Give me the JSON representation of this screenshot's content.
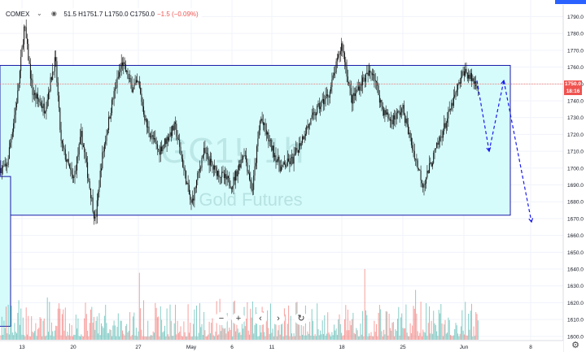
{
  "legend": {
    "symbol": "COMEX",
    "ohlc": "51.5 H1751.7 L1750.0 C1750.0",
    "change": "−1.5 (−0.09%)",
    "icons": [
      "chevron-down-icon",
      "eye-icon"
    ]
  },
  "watermark": {
    "symbol": "GC1!, 1h",
    "name": "Gold Futures"
  },
  "price_badge": {
    "price": "1750.0",
    "countdown": "18:16",
    "color": "#ef5350"
  },
  "navigation": [
    {
      "name": "zoom-out-icon",
      "glyph": "−"
    },
    {
      "name": "zoom-in-icon",
      "glyph": "+"
    },
    {
      "name": "scroll-left-icon",
      "glyph": "‹"
    },
    {
      "name": "scroll-right-icon",
      "glyph": "›"
    },
    {
      "name": "reset-icon",
      "glyph": "↻"
    }
  ],
  "colors": {
    "up": "#26a69a",
    "down": "#ef5350",
    "zone_fill": "#d6fbfb",
    "zone_border": "#1a1aa8",
    "arrow": "#1a1aee",
    "last_price_line": "#ef5350"
  },
  "chart_data": {
    "type": "candlestick",
    "timeframe": "1h",
    "x_ticks": [
      "13",
      "20",
      "27",
      "May",
      "6",
      "11",
      "18",
      "25",
      "Jun",
      "8"
    ],
    "y_ticks": [
      1600,
      1610,
      1620,
      1630,
      1640,
      1650,
      1660,
      1670,
      1680,
      1690,
      1700,
      1710,
      1720,
      1730,
      1740,
      1750,
      1760,
      1770,
      1780,
      1790
    ],
    "ylim": [
      1598,
      1796
    ],
    "grid": true,
    "last_price": 1750.0,
    "price_path": [
      [
        "13",
        1700
      ],
      [
        "14",
        1745
      ],
      [
        "15",
        1785
      ],
      [
        "16",
        1745
      ],
      [
        "17",
        1735
      ],
      [
        "18",
        1765
      ],
      [
        "19",
        1715
      ],
      [
        "20",
        1692
      ],
      [
        "21",
        1720
      ],
      [
        "22",
        1668
      ],
      [
        "23",
        1705
      ],
      [
        "24",
        1740
      ],
      [
        "25",
        1763
      ],
      [
        "26",
        1748
      ],
      [
        "27",
        1750
      ],
      [
        "28",
        1725
      ],
      [
        "29",
        1710
      ],
      [
        "30",
        1725
      ],
      [
        "May",
        1678
      ],
      [
        "4",
        1710
      ],
      [
        "5",
        1700
      ],
      [
        "6",
        1690
      ],
      [
        "7",
        1710
      ],
      [
        "8",
        1686
      ],
      [
        "9",
        1730
      ],
      [
        "11",
        1712
      ],
      [
        "12",
        1700
      ],
      [
        "13",
        1705
      ],
      [
        "14",
        1722
      ],
      [
        "15",
        1735
      ],
      [
        "16",
        1745
      ],
      [
        "17",
        1774
      ],
      [
        "18",
        1740
      ],
      [
        "19",
        1752
      ],
      [
        "20",
        1758
      ],
      [
        "21",
        1735
      ],
      [
        "22",
        1728
      ],
      [
        "25",
        1735
      ],
      [
        "26",
        1715
      ],
      [
        "27",
        1690
      ],
      [
        "28",
        1710
      ],
      [
        "29",
        1730
      ],
      [
        "Jun",
        1758
      ],
      [
        "2",
        1750
      ]
    ],
    "volume": {
      "max": 1.0,
      "note": "per-bar trading volume"
    },
    "annotations": {
      "range_box": {
        "from": "13",
        "to": "5 Jun",
        "top": 1761,
        "bottom": 1672
      },
      "left_box": {
        "top": 1695,
        "bottom": 1606
      },
      "projection": [
        {
          "x": "2 Jun",
          "y": 1752
        },
        {
          "x": "3 Jun",
          "y": 1710
        },
        {
          "x": "5 Jun",
          "y": 1752
        },
        {
          "x": "8 Jun",
          "y": 1668
        }
      ]
    }
  }
}
